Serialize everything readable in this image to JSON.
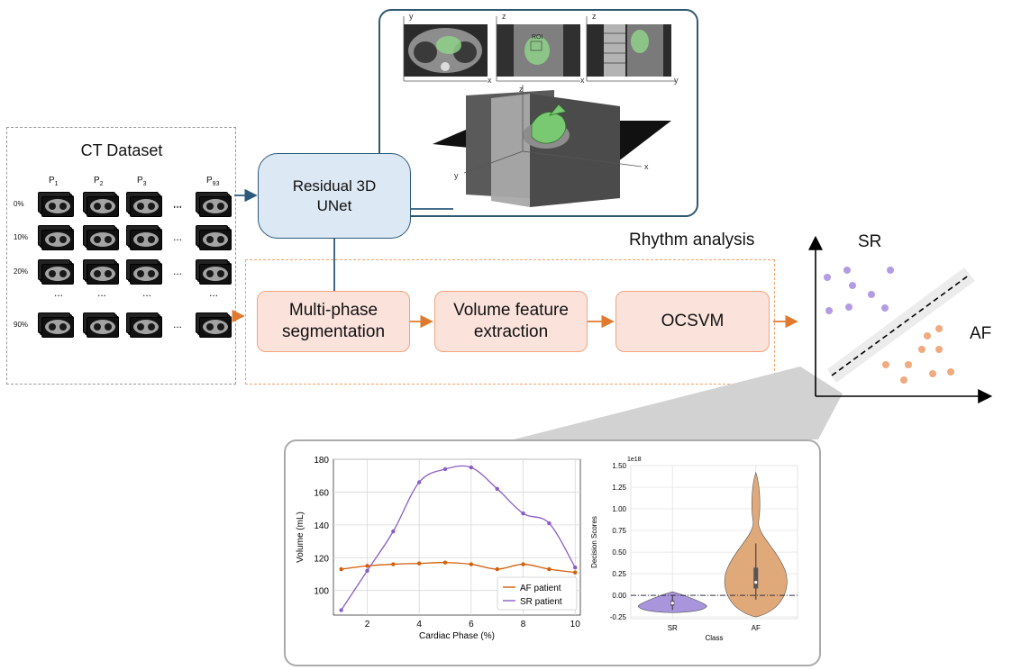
{
  "ct_dataset": {
    "title": "CT Dataset",
    "patients": [
      {
        "base": "P",
        "sub": "1"
      },
      {
        "base": "P",
        "sub": "2"
      },
      {
        "base": "P",
        "sub": "3"
      },
      {
        "base": "P",
        "sub": "93"
      }
    ],
    "phases": [
      "0%",
      "10%",
      "20%",
      "90%"
    ],
    "ellipsis": "..."
  },
  "nodes": {
    "unet": "Residual 3D\nUNet",
    "seg": "Multi-phase\nsegmentation",
    "feat": "Volume feature\nextraction",
    "ocsvm": "OCSVM"
  },
  "rhythm_label": "Rhythm analysis",
  "classifier": {
    "sr": "SR",
    "af": "AF"
  },
  "top_panel": {
    "axes": [
      {
        "v": "y",
        "h": "x"
      },
      {
        "v": "z",
        "h": "x"
      },
      {
        "v": "z",
        "h": "y"
      }
    ],
    "roi": "ROI",
    "axes3d": {
      "x": "x",
      "y": "y",
      "z": "z"
    }
  },
  "chart_data": [
    {
      "type": "line",
      "title": "",
      "xlabel": "Cardiac Phase (%)",
      "ylabel": "Volume (mL)",
      "x": [
        1,
        2,
        3,
        4,
        5,
        6,
        7,
        8,
        9,
        10
      ],
      "xlim": [
        0.7,
        10.2
      ],
      "ylim": [
        85,
        180
      ],
      "xticks": [
        2,
        4,
        6,
        8,
        10
      ],
      "yticks": [
        100,
        120,
        140,
        160,
        180
      ],
      "grid": true,
      "legend_position": "lower-right",
      "series": [
        {
          "name": "AF patient",
          "color": "#d35f0a",
          "values": [
            113,
            115,
            116,
            116.5,
            117,
            116,
            113,
            116,
            113,
            111
          ]
        },
        {
          "name": "SR patient",
          "color": "#8a5cc8",
          "values": [
            88,
            112,
            136,
            166,
            174,
            175,
            162,
            147,
            141,
            114
          ]
        }
      ]
    },
    {
      "type": "violin",
      "title": "",
      "xlabel": "Class",
      "ylabel": "Decision Scores",
      "scale_label": "1e18",
      "categories": [
        "SR",
        "AF"
      ],
      "ylim": [
        -0.27,
        1.5
      ],
      "yticks": [
        -0.25,
        0.0,
        0.25,
        0.5,
        0.75,
        1.0,
        1.25,
        1.5
      ],
      "ytick_labels": [
        "-0.25",
        "0.00",
        "0.25",
        "0.50",
        "0.75",
        "1.00",
        "1.25",
        "1.50"
      ],
      "grid": true,
      "threshold": 0.0,
      "series": [
        {
          "name": "SR",
          "color": "#a995dc",
          "min": -0.2,
          "max": 0.04,
          "median": -0.09
        },
        {
          "name": "AF",
          "color": "#e0a97a",
          "min": -0.25,
          "max": 1.42,
          "median": 0.15
        }
      ]
    }
  ]
}
